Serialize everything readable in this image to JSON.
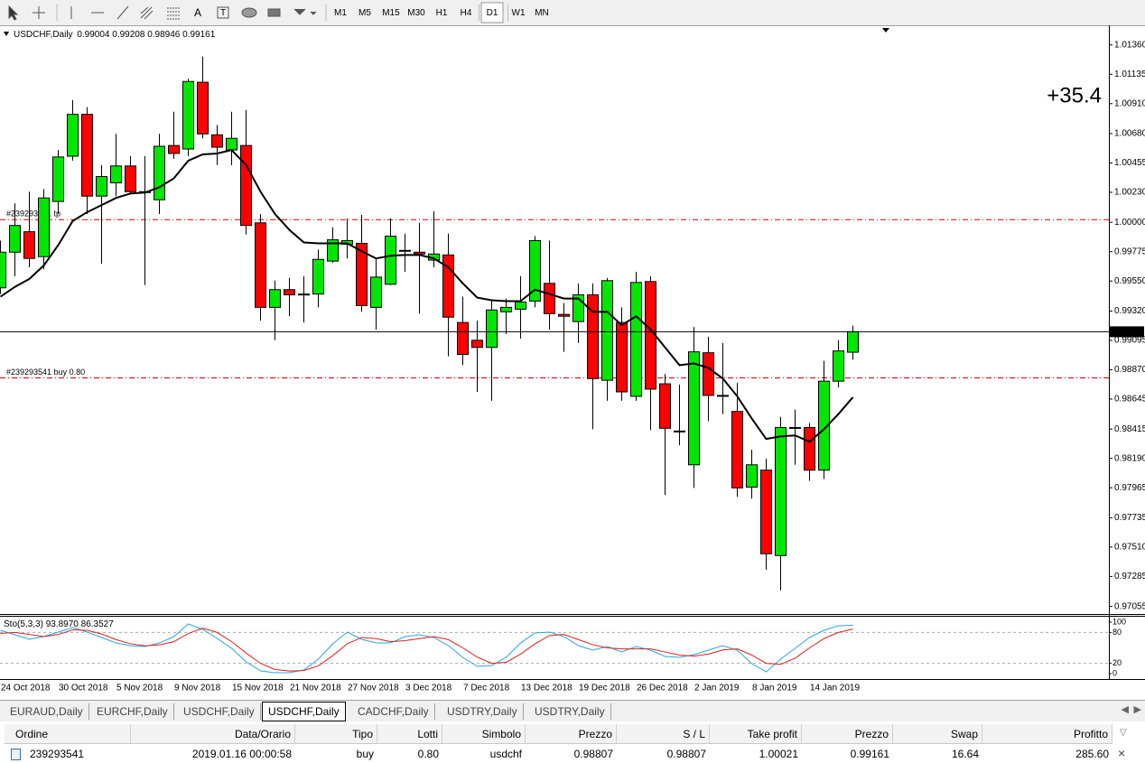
{
  "toolbar": {
    "timeframes": [
      "M1",
      "M5",
      "M15",
      "M30",
      "H1",
      "H4",
      "D1",
      "W1",
      "MN"
    ],
    "active": "D1"
  },
  "chart_data": [
    {
      "type": "candlestick",
      "title": "USDCHF,Daily",
      "categories": [
        "24 Oct 2018",
        null,
        null,
        null,
        "30 Oct 2018",
        null,
        null,
        null,
        "5 Nov 2018",
        null,
        null,
        null,
        "9 Nov 2018",
        null,
        null,
        null,
        "15 Nov 2018",
        null,
        null,
        null,
        "21 Nov 2018",
        null,
        null,
        null,
        "27 Nov 2018",
        null,
        null,
        null,
        "3 Dec 2018",
        null,
        null,
        null,
        "7 Dec 2018",
        null,
        null,
        null,
        "13 Dec 2018",
        null,
        null,
        null,
        "19 Dec 2018",
        null,
        null,
        null,
        "26 Dec 2018",
        null,
        null,
        null,
        "2 Jan 2019",
        null,
        null,
        null,
        "8 Jan 2019",
        null,
        null,
        null,
        "14 Jan 2019",
        null,
        null,
        null
      ],
      "ohlc": [
        [
          0.99498,
          0.9986,
          0.9945,
          0.99771
        ],
        [
          0.99771,
          1.00146,
          0.99587,
          0.99976
        ],
        [
          0.99928,
          1.00235,
          0.99655,
          0.99723
        ],
        [
          0.99737,
          1.00255,
          0.99641,
          1.00187
        ],
        [
          1.0016,
          1.00555,
          1.00064,
          1.00501
        ],
        [
          1.00507,
          1.00937,
          1.00473,
          1.00828
        ],
        [
          1.00828,
          1.00883,
          1.00064,
          1.00201
        ],
        [
          1.00201,
          1.00439,
          0.99682,
          1.00351
        ],
        [
          1.00303,
          1.00678,
          1.00201,
          1.00432
        ],
        [
          1.00432,
          1.00507,
          1.00214,
          1.00235
        ],
        [
          1.00235,
          1.00507,
          0.99519,
          1.00228
        ],
        [
          1.00173,
          1.00678,
          1.00064,
          1.00583
        ],
        [
          1.00589,
          1.00848,
          1.00487,
          1.00528
        ],
        [
          1.00562,
          1.01101,
          1.00507,
          1.0108
        ],
        [
          1.01074,
          1.01271,
          1.00644,
          1.00678
        ],
        [
          1.00671,
          1.00746,
          1.00439,
          1.00576
        ],
        [
          1.00555,
          1.00848,
          1.00439,
          1.00644
        ],
        [
          1.00589,
          1.00862,
          0.99907,
          0.99976
        ],
        [
          0.99996,
          1.00064,
          0.99246,
          0.99348
        ],
        [
          0.99348,
          0.99553,
          0.99096,
          0.99484
        ],
        [
          0.99484,
          0.99573,
          0.9928,
          0.99444
        ],
        [
          0.9945,
          0.99587,
          0.99232,
          0.99444
        ],
        [
          0.9945,
          0.99791,
          0.99348,
          0.99716
        ],
        [
          0.99703,
          0.99962,
          0.99689,
          0.99866
        ],
        [
          0.99832,
          1.0003,
          0.99723,
          0.9986
        ],
        [
          0.99839,
          1.00057,
          0.99314,
          0.99362
        ],
        [
          0.99348,
          0.99723,
          0.99178,
          0.9958
        ],
        [
          0.99525,
          1.0003,
          0.99519,
          0.99894
        ],
        [
          0.99785,
          0.99914,
          0.99621,
          0.99778
        ],
        [
          0.99771,
          0.99996,
          0.993,
          0.99757
        ],
        [
          0.9971,
          1.00085,
          0.99655,
          0.99757
        ],
        [
          0.9975,
          0.99914,
          0.98973,
          0.99273
        ],
        [
          0.99232,
          0.9943,
          0.98905,
          0.98987
        ],
        [
          0.99096,
          0.99246,
          0.987,
          0.99041
        ],
        [
          0.99041,
          0.99403,
          0.98632,
          0.99328
        ],
        [
          0.99314,
          0.99416,
          0.99143,
          0.99348
        ],
        [
          0.99334,
          0.99587,
          0.99109,
          0.99389
        ],
        [
          0.99396,
          0.99894,
          0.99348,
          0.9986
        ],
        [
          0.99532,
          0.9986,
          0.99178,
          0.993
        ],
        [
          0.99294,
          0.99382,
          0.99007,
          0.9928
        ],
        [
          0.99239,
          0.99532,
          0.99075,
          0.99444
        ],
        [
          0.99444,
          0.99532,
          0.98414,
          0.98802
        ],
        [
          0.98789,
          0.99573,
          0.98632,
          0.99553
        ],
        [
          0.99232,
          0.99348,
          0.98632,
          0.987
        ],
        [
          0.98666,
          0.99621,
          0.98632,
          0.99539
        ],
        [
          0.99546,
          0.99587,
          0.98407,
          0.98721
        ],
        [
          0.98762,
          0.98837,
          0.97909,
          0.98421
        ],
        [
          0.984,
          0.98755,
          0.98291,
          0.984
        ],
        [
          0.98141,
          0.99198,
          0.97964,
          0.99007
        ],
        [
          0.99,
          0.99123,
          0.98475,
          0.98673
        ],
        [
          0.98673,
          0.99075,
          0.9853,
          0.98666
        ],
        [
          0.9855,
          0.98768,
          0.97895,
          0.97964
        ],
        [
          0.9797,
          0.98257,
          0.97882,
          0.98141
        ],
        [
          0.981,
          0.98189,
          0.97336,
          0.97459
        ],
        [
          0.97445,
          0.98509,
          0.97179,
          0.98427
        ],
        [
          0.98427,
          0.98564,
          0.98141,
          0.98421
        ],
        [
          0.98427,
          0.98461,
          0.98018,
          0.981
        ],
        [
          0.981,
          0.98939,
          0.98032,
          0.98782
        ],
        [
          0.98782,
          0.99096,
          0.98734,
          0.99014
        ],
        [
          0.99004,
          0.99208,
          0.98946,
          0.99161
        ]
      ],
      "up_color": "#00e600",
      "down_color": "#ff0000",
      "ma": {
        "color": "#000000",
        "values": [
          0.9943,
          0.99505,
          0.99566,
          0.99669,
          0.99825,
          1.0001,
          1.00078,
          1.00132,
          1.00187,
          1.00221,
          1.00228,
          1.00269,
          1.00337,
          1.00473,
          1.00521,
          1.00528,
          1.00555,
          1.00439,
          1.00235,
          1.00064,
          0.99942,
          0.99846,
          0.99839,
          0.99839,
          0.99839,
          0.99778,
          0.99723,
          0.99744,
          0.9975,
          0.9975,
          0.99723,
          0.99655,
          0.99532,
          0.99423,
          0.99403,
          0.99396,
          0.99396,
          0.99484,
          0.9945,
          0.99416,
          0.99416,
          0.99314,
          0.99314,
          0.99212,
          0.9928,
          0.99178,
          0.99041,
          0.98905,
          0.98918,
          0.98884,
          0.98802,
          0.98666,
          0.98496,
          0.98339,
          0.98359,
          0.98366,
          0.98318,
          0.98414,
          0.9853,
          0.98659
        ]
      },
      "order_lines": [
        {
          "label": "#239293541 tp",
          "value": 1.00021,
          "color": "#d00000"
        },
        {
          "label": "#239293541 buy 0.80",
          "value": 0.98807,
          "color": "#d00000"
        }
      ],
      "annotation": "+35.4",
      "ylim": [
        0.96997,
        1.0149
      ],
      "yticks": [
        {
          "value": 1.0136,
          "label": "1.01360"
        },
        {
          "value": 1.01135,
          "label": "1.01135"
        },
        {
          "value": 1.0091,
          "label": "1.00910"
        },
        {
          "value": 1.0068,
          "label": "1.00680"
        },
        {
          "value": 1.00455,
          "label": "1.00455"
        },
        {
          "value": 1.0023,
          "label": "1.00230"
        },
        {
          "value": 1.0,
          "label": "1.00000"
        },
        {
          "value": 0.99775,
          "label": "0.99775"
        },
        {
          "value": 0.9955,
          "label": "0.99550"
        },
        {
          "value": 0.9932,
          "label": "0.99320"
        },
        {
          "value": 0.99095,
          "label": "0.99095"
        },
        {
          "value": 0.9887,
          "label": "0.98870"
        },
        {
          "value": 0.98645,
          "label": "0.98645"
        },
        {
          "value": 0.98415,
          "label": "0.98415"
        },
        {
          "value": 0.9819,
          "label": "0.98190"
        },
        {
          "value": 0.97965,
          "label": "0.97965"
        },
        {
          "value": 0.97735,
          "label": "0.97735"
        },
        {
          "value": 0.9751,
          "label": "0.97510"
        },
        {
          "value": 0.97285,
          "label": "0.97285"
        },
        {
          "value": 0.97055,
          "label": "0.97055"
        }
      ]
    },
    {
      "type": "line",
      "title": "Sto(5,3,3)",
      "value_labels": [
        "93.8970",
        "86.3527"
      ],
      "series": [
        {
          "color": "#29a8d8",
          "values": [
            84.2,
            75.4,
            66.7,
            71.9,
            80.7,
            89.5,
            80.7,
            70.2,
            59.6,
            54.4,
            52.6,
            59.6,
            71.9,
            96.5,
            86.0,
            68.4,
            49.1,
            22.8,
            5.3,
            1.8,
            1.8,
            7.0,
            28.1,
            57.9,
            80.7,
            66.7,
            59.6,
            59.6,
            71.9,
            75.4,
            70.2,
            54.4,
            31.6,
            14.0,
            15.8,
            31.6,
            59.6,
            78.9,
            80.7,
            71.9,
            54.4,
            45.6,
            52.6,
            42.1,
            52.6,
            45.6,
            33.3,
            31.6,
            36.8,
            45.6,
            54.4,
            45.6,
            19.3,
            3.5,
            28.1,
            49.1,
            70.2,
            84.2,
            93.0,
            93.897
          ]
        },
        {
          "color": "#e02020",
          "values": [
            78,
            80,
            76,
            72,
            76,
            85,
            84,
            77,
            66,
            58,
            54,
            56,
            62,
            78,
            88,
            80,
            62,
            40,
            20,
            8,
            5,
            6,
            15,
            35,
            58,
            70,
            68,
            62,
            64,
            68,
            72,
            66,
            50,
            32,
            20,
            22,
            38,
            58,
            74,
            76,
            66,
            56,
            50,
            48,
            48,
            48,
            42,
            36,
            34,
            38,
            46,
            48,
            36,
            20,
            18,
            30,
            50,
            68,
            80,
            86.3527
          ]
        }
      ],
      "levels": [
        20,
        80
      ],
      "ylim": [
        -10.5,
        110.5
      ],
      "yticks": [
        0,
        20,
        80,
        100
      ]
    }
  ],
  "tabs": [
    "EURAUD,Daily",
    "EURCHF,Daily",
    "USDCHF,Daily",
    "USDCHF,Daily",
    "CADCHF,Daily",
    "USDTRY,Daily",
    "USDTRY,Daily"
  ],
  "active_tab": 3,
  "table": {
    "columns": [
      "Ordine",
      "Data/Orario",
      "Tipo",
      "Lotti",
      "Simbolo",
      "Prezzo",
      "S / L",
      "Take profit",
      "Prezzo",
      "Swap",
      "Profitto"
    ],
    "rows": [
      [
        "239293541",
        "2019.01.16 00:00:58",
        "buy",
        "0.80",
        "usdchf",
        "0.98807",
        "0.98807",
        "1.00021",
        "0.99161",
        "16.64",
        "285.60"
      ]
    ]
  }
}
